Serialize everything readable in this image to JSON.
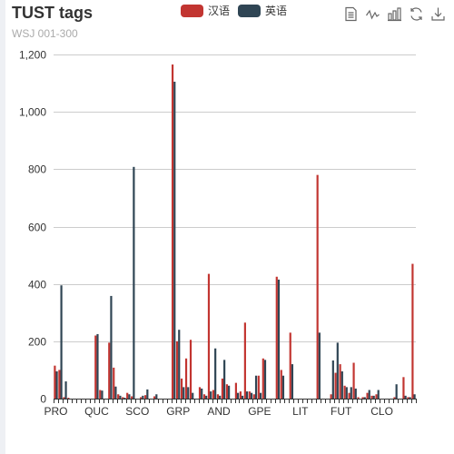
{
  "title": "TUST tags",
  "subtitle": "WSJ 001-300",
  "legend": [
    {
      "name": "汉语",
      "color": "#c23531"
    },
    {
      "name": "英语",
      "color": "#2f4554"
    }
  ],
  "toolbox": [
    {
      "icon": "data-view-icon"
    },
    {
      "icon": "line-chart-icon"
    },
    {
      "icon": "bar-chart-icon"
    },
    {
      "icon": "restore-icon"
    },
    {
      "icon": "save-image-icon"
    }
  ],
  "colors": {
    "series_a": "#c23531",
    "series_b": "#2f4554",
    "grid": "#cccccc",
    "axis": "#333333"
  },
  "chart_data": {
    "type": "bar",
    "title": "TUST tags",
    "subtitle": "WSJ 001-300",
    "ylim": [
      0,
      1200
    ],
    "yticks": [
      0,
      200,
      400,
      600,
      800,
      1000,
      1200
    ],
    "ytick_labels": [
      "0",
      "200",
      "400",
      "600",
      "800",
      "1,000",
      "1,200"
    ],
    "grid": true,
    "legend_position": "top-center",
    "xtick_labels": [
      "PRO",
      "QUC",
      "SCO",
      "GRP",
      "AND",
      "GPE",
      "LIT",
      "FUT",
      "CLO"
    ],
    "xtick_category_index": [
      0,
      9,
      18,
      27,
      36,
      45,
      54,
      63,
      72
    ],
    "num_categories": 80,
    "series": [
      {
        "name": "汉语",
        "values": [
          115,
          100,
          5,
          3,
          0,
          0,
          0,
          0,
          0,
          220,
          30,
          0,
          195,
          108,
          15,
          5,
          20,
          8,
          0,
          5,
          12,
          0,
          8,
          0,
          0,
          0,
          1165,
          200,
          70,
          140,
          205,
          0,
          40,
          15,
          435,
          30,
          15,
          70,
          50,
          0,
          55,
          25,
          265,
          25,
          15,
          80,
          140,
          0,
          0,
          425,
          100,
          0,
          230,
          0,
          0,
          0,
          0,
          0,
          780,
          0,
          0,
          15,
          90,
          120,
          45,
          20,
          125,
          5,
          5,
          20,
          10,
          15,
          0,
          0,
          0,
          5,
          0,
          75,
          5,
          470
        ],
        "color": "#c23531"
      },
      {
        "name": "英语",
        "values": [
          95,
          395,
          60,
          0,
          0,
          0,
          0,
          0,
          0,
          225,
          28,
          0,
          358,
          42,
          10,
          3,
          15,
          808,
          0,
          10,
          32,
          0,
          15,
          0,
          0,
          0,
          1105,
          240,
          40,
          40,
          20,
          0,
          35,
          10,
          25,
          175,
          10,
          135,
          45,
          0,
          20,
          10,
          25,
          20,
          80,
          20,
          135,
          0,
          0,
          415,
          80,
          0,
          120,
          0,
          0,
          0,
          0,
          0,
          230,
          0,
          0,
          133,
          195,
          95,
          40,
          40,
          35,
          0,
          5,
          30,
          10,
          30,
          0,
          0,
          0,
          50,
          0,
          10,
          5,
          15
        ],
        "color": "#2f4554"
      }
    ]
  }
}
